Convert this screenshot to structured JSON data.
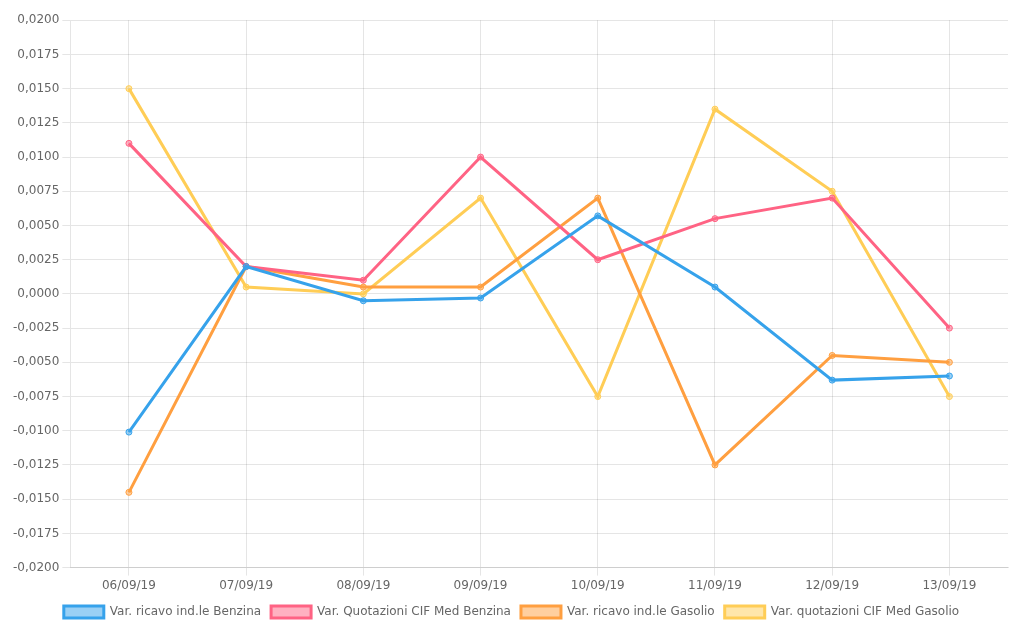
{
  "chart_data": {
    "type": "line",
    "categories": [
      "06/09/19",
      "07/09/19",
      "08/09/19",
      "09/09/19",
      "10/09/19",
      "11/09/19",
      "12/09/19",
      "13/09/19"
    ],
    "series": [
      {
        "name": "Var. ricavo ind.le Benzina",
        "values": [
          -0.0101,
          0.002,
          -0.0005,
          -0.0003,
          0.0057,
          0.0005,
          -0.0063,
          -0.006
        ]
      },
      {
        "name": "Var. Quotazioni CIF Med Benzina",
        "values": [
          0.011,
          0.002,
          0.001,
          0.01,
          0.0025,
          0.0055,
          0.007,
          -0.0025
        ]
      },
      {
        "name": "Var. ricavo ind.le Gasolio",
        "values": [
          -0.0145,
          0.002,
          0.0005,
          0.0005,
          0.007,
          -0.0125,
          -0.0045,
          -0.005
        ]
      },
      {
        "name": "Var. quotazioni CIF Med Gasolio",
        "values": [
          0.015,
          0.0005,
          0.0,
          0.007,
          -0.0075,
          0.0135,
          0.0075,
          -0.0075
        ]
      }
    ],
    "ylim": [
      -0.02,
      0.02
    ],
    "yticks": [
      {
        "value": -0.02,
        "label": "-0,0200"
      },
      {
        "value": -0.0175,
        "label": "-0,0175"
      },
      {
        "value": -0.015,
        "label": "-0,0150"
      },
      {
        "value": -0.0125,
        "label": "-0,0125"
      },
      {
        "value": -0.01,
        "label": "-0,0100"
      },
      {
        "value": -0.0075,
        "label": "-0,0075"
      },
      {
        "value": -0.005,
        "label": "-0,0050"
      },
      {
        "value": -0.0025,
        "label": "-0,0025"
      },
      {
        "value": 0.0,
        "label": "0,0000"
      },
      {
        "value": 0.0025,
        "label": "0,0025"
      },
      {
        "value": 0.005,
        "label": "0,0050"
      },
      {
        "value": 0.0075,
        "label": "0,0075"
      },
      {
        "value": 0.01,
        "label": "0,0100"
      },
      {
        "value": 0.0125,
        "label": "0,0125"
      },
      {
        "value": 0.015,
        "label": "0,0150"
      },
      {
        "value": 0.0175,
        "label": "0,0175"
      },
      {
        "value": 0.02,
        "label": "0,0200"
      }
    ],
    "grid": true,
    "legend": "bottom"
  }
}
